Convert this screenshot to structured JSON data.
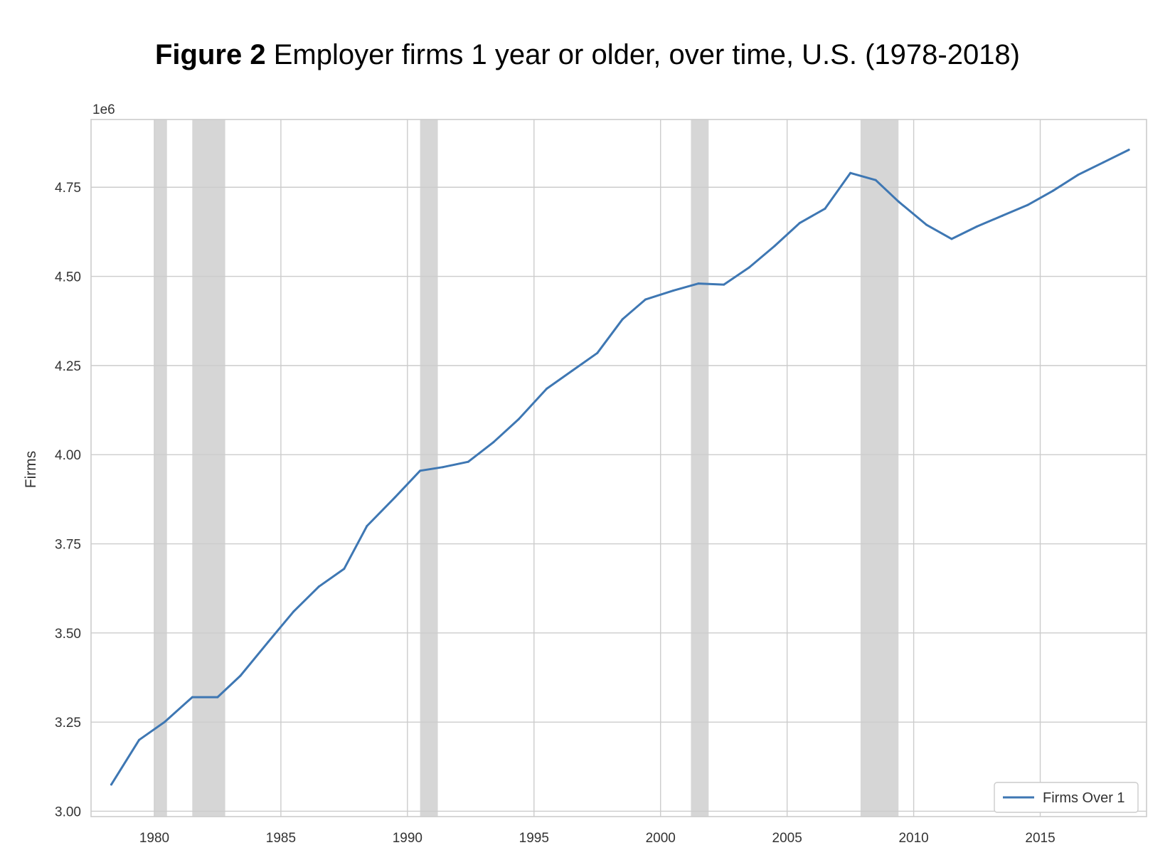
{
  "figure": {
    "label": "Figure 2",
    "title": "Employer firms 1 year or older, over time, U.S. (1978-2018)"
  },
  "chart_data": {
    "type": "line",
    "title": "Figure 2 Employer firms 1 year or older, over time, U.S. (1978-2018)",
    "xlabel": "",
    "ylabel": "Firms",
    "y_scale_label": "1e6",
    "xlim": [
      1977.5,
      2019.2
    ],
    "ylim": [
      2.985,
      4.94
    ],
    "x_ticks": [
      1980,
      1985,
      1990,
      1995,
      2000,
      2005,
      2010,
      2015
    ],
    "x_tick_labels": [
      "1980",
      "1985",
      "1990",
      "1995",
      "2000",
      "2005",
      "2010",
      "2015"
    ],
    "y_ticks": [
      3.0,
      3.25,
      3.5,
      3.75,
      4.0,
      4.25,
      4.5,
      4.75
    ],
    "y_tick_labels": [
      "3.00",
      "3.25",
      "3.50",
      "3.75",
      "4.00",
      "4.25",
      "4.50",
      "4.75"
    ],
    "grid": true,
    "legend_position": "bottom-right",
    "recession_bands": [
      [
        1980.0,
        1980.5
      ],
      [
        1981.5,
        1982.8
      ],
      [
        1990.5,
        1991.2
      ],
      [
        2001.2,
        2001.9
      ],
      [
        2007.9,
        2009.4
      ]
    ],
    "series": [
      {
        "name": "Firms Over 1",
        "color": "#3e77b3",
        "x": [
          1978.3,
          1979.4,
          1980.4,
          1981.5,
          1982.5,
          1983.4,
          1984.5,
          1985.5,
          1986.5,
          1987.5,
          1988.4,
          1989.5,
          1990.5,
          1991.4,
          1992.4,
          1993.4,
          1994.4,
          1995.5,
          1996.5,
          1997.5,
          1998.5,
          1999.4,
          2000.5,
          2001.5,
          2002.5,
          2003.5,
          2004.5,
          2005.5,
          2006.5,
          2007.5,
          2008.5,
          2009.4,
          2010.5,
          2011.5,
          2012.5,
          2013.5,
          2014.5,
          2015.5,
          2016.5,
          2017.5,
          2018.5
        ],
        "values": [
          3.075,
          3.2,
          3.25,
          3.32,
          3.32,
          3.38,
          3.475,
          3.56,
          3.63,
          3.68,
          3.8,
          3.88,
          3.955,
          3.965,
          3.98,
          4.035,
          4.1,
          4.185,
          4.235,
          4.285,
          4.38,
          4.435,
          4.46,
          4.48,
          4.477,
          4.525,
          4.585,
          4.65,
          4.69,
          4.79,
          4.77,
          4.71,
          4.645,
          4.605,
          4.64,
          4.67,
          4.7,
          4.74,
          4.785,
          4.82,
          4.855
        ]
      }
    ]
  }
}
